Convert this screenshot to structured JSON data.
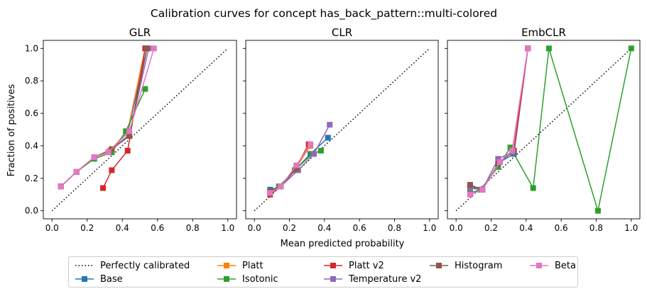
{
  "figure_title": "Calibration curves for concept has_back_pattern::multi-colored",
  "xlabel": "Mean predicted probability",
  "ylabel": "Fraction of positives",
  "legend": [
    {
      "label": "Perfectly calibrated",
      "color": "#000000",
      "style": "dotted"
    },
    {
      "label": "Base",
      "color": "#1f77b4",
      "style": "line-square"
    },
    {
      "label": "Platt",
      "color": "#ff7f0e",
      "style": "line-square"
    },
    {
      "label": "Isotonic",
      "color": "#2ca02c",
      "style": "line-square"
    },
    {
      "label": "Platt v2",
      "color": "#d62728",
      "style": "line-square"
    },
    {
      "label": "Temperature v2",
      "color": "#9467bd",
      "style": "line-square"
    },
    {
      "label": "Histogram",
      "color": "#8c564b",
      "style": "line-square"
    },
    {
      "label": "Beta",
      "color": "#e377c2",
      "style": "line-square"
    }
  ],
  "chart_data": [
    {
      "type": "line",
      "title": "GLR",
      "xlim": [
        0,
        1
      ],
      "ylim": [
        0,
        1
      ],
      "xticks": [
        "0.0",
        "0.2",
        "0.4",
        "0.6",
        "0.8",
        "1.0"
      ],
      "yticks": [
        "0.0",
        "0.2",
        "0.4",
        "0.6",
        "0.8",
        "1.0"
      ],
      "series": [
        {
          "name": "Base",
          "color": "#1f77b4",
          "x": [
            0.05,
            0.14,
            0.24,
            0.33,
            0.43,
            0.54
          ],
          "y": [
            0.15,
            0.24,
            0.33,
            0.37,
            0.48,
            1.0
          ]
        },
        {
          "name": "Platt",
          "color": "#ff7f0e",
          "x": [
            0.05,
            0.14,
            0.24,
            0.33,
            0.43,
            0.53
          ],
          "y": [
            0.15,
            0.24,
            0.33,
            0.37,
            0.49,
            1.0
          ]
        },
        {
          "name": "Isotonic",
          "color": "#2ca02c",
          "x": [
            0.05,
            0.14,
            0.24,
            0.34,
            0.42,
            0.53
          ],
          "y": [
            0.15,
            0.24,
            0.32,
            0.36,
            0.49,
            0.75
          ]
        },
        {
          "name": "Platt v2",
          "color": "#d62728",
          "x": [
            0.29,
            0.34,
            0.43,
            0.53
          ],
          "y": [
            0.14,
            0.25,
            0.37,
            1.0
          ]
        },
        {
          "name": "Temperature v2",
          "color": "#9467bd",
          "x": [
            0.05,
            0.14,
            0.24,
            0.32,
            0.44,
            0.55
          ],
          "y": [
            0.15,
            0.24,
            0.33,
            0.36,
            0.47,
            1.0
          ]
        },
        {
          "name": "Histogram",
          "color": "#8c564b",
          "x": [
            0.05,
            0.14,
            0.24,
            0.34,
            0.44,
            0.54
          ],
          "y": [
            0.15,
            0.24,
            0.33,
            0.38,
            0.46,
            1.0
          ]
        },
        {
          "name": "Beta",
          "color": "#e377c2",
          "x": [
            0.05,
            0.14,
            0.24,
            0.32,
            0.44,
            0.58
          ],
          "y": [
            0.15,
            0.24,
            0.33,
            0.36,
            0.49,
            1.0
          ]
        }
      ]
    },
    {
      "type": "line",
      "title": "CLR",
      "xlim": [
        0,
        1
      ],
      "ylim": [
        0,
        1
      ],
      "xticks": [
        "0.0",
        "0.2",
        "0.4",
        "0.6",
        "0.8",
        "1.0"
      ],
      "yticks": [],
      "series": [
        {
          "name": "Base",
          "color": "#1f77b4",
          "x": [
            0.09,
            0.15,
            0.24,
            0.32,
            0.42
          ],
          "y": [
            0.13,
            0.15,
            0.26,
            0.35,
            0.45
          ]
        },
        {
          "name": "Platt",
          "color": "#ff7f0e",
          "x": [
            0.09,
            0.15,
            0.24,
            0.32
          ],
          "y": [
            0.12,
            0.15,
            0.27,
            0.4
          ]
        },
        {
          "name": "Isotonic",
          "color": "#2ca02c",
          "x": [
            0.09,
            0.14,
            0.23,
            0.33,
            0.38
          ],
          "y": [
            0.12,
            0.15,
            0.25,
            0.35,
            0.37
          ]
        },
        {
          "name": "Platt v2",
          "color": "#d62728",
          "x": [
            0.09,
            0.15,
            0.24,
            0.31
          ],
          "y": [
            0.1,
            0.15,
            0.27,
            0.41
          ]
        },
        {
          "name": "Temperature v2",
          "color": "#9467bd",
          "x": [
            0.09,
            0.15,
            0.25,
            0.34,
            0.43
          ],
          "y": [
            0.12,
            0.15,
            0.25,
            0.35,
            0.53
          ]
        },
        {
          "name": "Histogram",
          "color": "#8c564b",
          "x": [
            0.09,
            0.15,
            0.24
          ],
          "y": [
            0.12,
            0.15,
            0.26
          ]
        },
        {
          "name": "Beta",
          "color": "#e377c2",
          "x": [
            0.09,
            0.15,
            0.24,
            0.32
          ],
          "y": [
            0.11,
            0.15,
            0.28,
            0.41
          ]
        }
      ]
    },
    {
      "type": "line",
      "title": "EmbCLR",
      "xlim": [
        0,
        1
      ],
      "ylim": [
        0,
        1
      ],
      "xticks": [
        "0.0",
        "0.2",
        "0.4",
        "0.6",
        "0.8",
        "1.0"
      ],
      "yticks": [],
      "series": [
        {
          "name": "Base",
          "color": "#1f77b4",
          "x": [
            0.08,
            0.15,
            0.25,
            0.33,
            0.41
          ],
          "y": [
            0.15,
            0.13,
            0.3,
            0.35,
            1.0
          ]
        },
        {
          "name": "Platt",
          "color": "#ff7f0e",
          "x": [
            0.08,
            0.15,
            0.25,
            0.33,
            0.41
          ],
          "y": [
            0.14,
            0.13,
            0.3,
            0.37,
            1.0
          ]
        },
        {
          "name": "Isotonic",
          "color": "#2ca02c",
          "x": [
            0.08,
            0.14,
            0.24,
            0.31,
            0.44,
            0.53,
            0.81,
            1.0
          ],
          "y": [
            0.11,
            0.13,
            0.27,
            0.39,
            0.14,
            1.0,
            0.0,
            1.0
          ]
        },
        {
          "name": "Platt v2",
          "color": "#d62728",
          "x": [
            0.08,
            0.15,
            0.25,
            0.33,
            0.41
          ],
          "y": [
            0.14,
            0.13,
            0.3,
            0.37,
            1.0
          ]
        },
        {
          "name": "Temperature v2",
          "color": "#9467bd",
          "x": [
            0.08,
            0.15,
            0.24,
            0.32,
            0.41
          ],
          "y": [
            0.14,
            0.13,
            0.32,
            0.36,
            1.0
          ]
        },
        {
          "name": "Histogram",
          "color": "#8c564b",
          "x": [
            0.08,
            0.15,
            0.24,
            0.33
          ],
          "y": [
            0.16,
            0.13,
            0.29,
            0.37
          ]
        },
        {
          "name": "Beta",
          "color": "#e377c2",
          "x": [
            0.08,
            0.15,
            0.25,
            0.32,
            0.41
          ],
          "y": [
            0.1,
            0.13,
            0.3,
            0.37,
            1.0
          ]
        }
      ]
    }
  ]
}
